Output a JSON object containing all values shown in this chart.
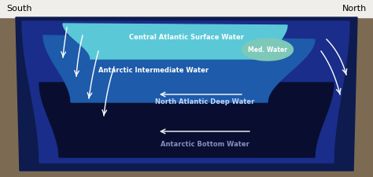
{
  "title_left": "South",
  "title_right": "North",
  "bg_color": "#7d6a52",
  "header_color": "#f0eeeb",
  "colors": {
    "outermost": "#0d1b4e",
    "nadw": "#1a2d8a",
    "aabw": "#090e30",
    "aaiw": "#1e5baa",
    "surface": "#5bc8d8",
    "med": "#7ec8b8"
  },
  "labels": {
    "surface": "Central Atlantic Surface Water",
    "aaiw": "Antarctic Intermediate Water",
    "med": "Med. Water",
    "nadw": "North Atlantic Deep Water",
    "aabw": "Antarctic Bottom Water"
  },
  "label_colors": {
    "surface": "#e0f7fa",
    "aaiw": "#cce0f5",
    "med": "#e0f5f0",
    "nadw": "#b0c8f0",
    "aabw": "#8090c0"
  },
  "arrow_color": "white",
  "fs": 6.0,
  "fs_title": 8.0
}
